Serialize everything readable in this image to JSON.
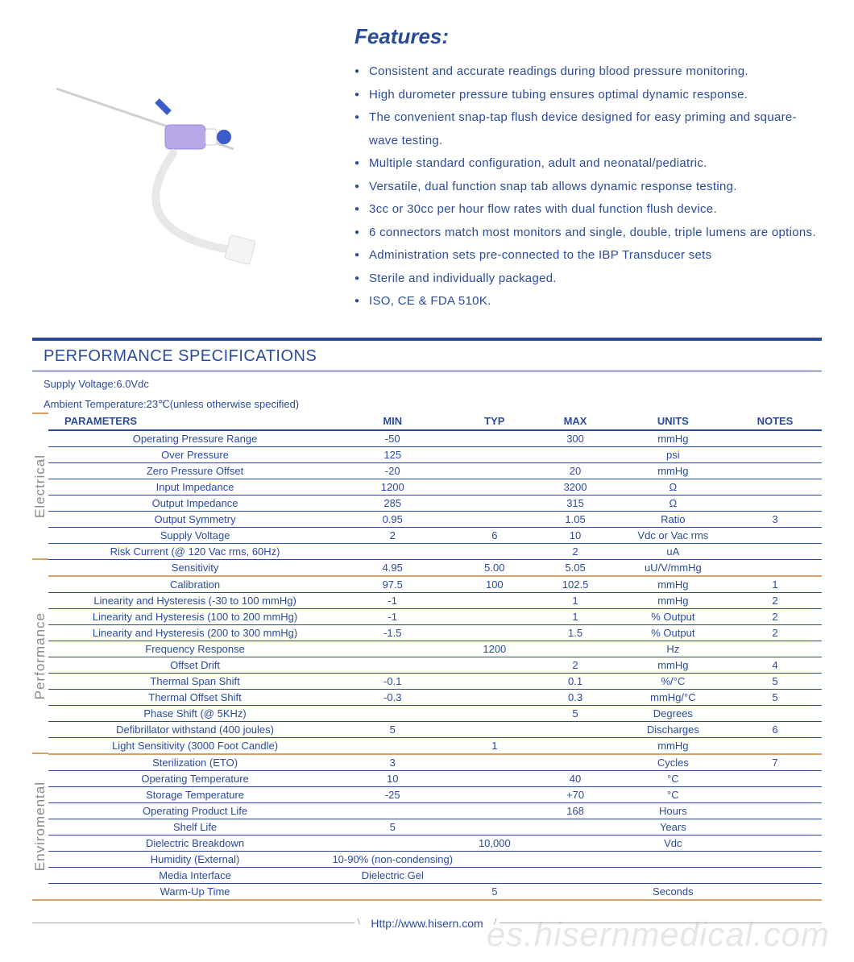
{
  "colors": {
    "brand": "#2a4b9b",
    "accent_border": "#d9a066",
    "text_muted": "#888888",
    "background": "#ffffff"
  },
  "features": {
    "heading": "Features:",
    "items": [
      "Consistent and accurate readings during blood pressure monitoring.",
      "High durometer pressure tubing ensures optimal dynamic response.",
      "The convenient snap-tap flush device designed for easy priming and square-wave testing.",
      "Multiple standard configuration, adult and neonatal/pediatric.",
      "Versatile, dual function snap tab allows dynamic response testing.",
      "3cc or 30cc per hour flow rates with dual function flush device.",
      "6 connectors match most monitors and single, double, triple lumens are options.",
      "Administration sets pre-connected to the IBP Transducer sets",
      "Sterile and individually packaged.",
      "ISO, CE & FDA 510K."
    ]
  },
  "spec": {
    "title": "PERFORMANCE SPECIFICATIONS",
    "supply_voltage_note": "Supply Voltage:6.0Vdc",
    "ambient_note": "Ambient Temperature:23℃(unless otherwise specified)",
    "headers": {
      "parameters": "PARAMETERS",
      "min": "MIN",
      "typ": "TYP",
      "max": "MAX",
      "units": "UNITS",
      "notes": "NOTES"
    },
    "sections": [
      {
        "label": "Electrical",
        "rows": [
          {
            "param": "Operating Pressure Range",
            "min": "-50",
            "typ": "",
            "max": "300",
            "units": "mmHg",
            "notes": ""
          },
          {
            "param": "Over  Pressure",
            "min": "125",
            "typ": "",
            "max": "",
            "units": "psi",
            "notes": ""
          },
          {
            "param": "Zero Pressure Offset",
            "min": "-20",
            "typ": "",
            "max": "20",
            "units": "mmHg",
            "notes": ""
          },
          {
            "param": "Input Impedance",
            "min": "1200",
            "typ": "",
            "max": "3200",
            "units": "Ω",
            "notes": ""
          },
          {
            "param": "Output Impedance",
            "min": "285",
            "typ": "",
            "max": "315",
            "units": "Ω",
            "notes": ""
          },
          {
            "param": "Output Symmetry",
            "min": "0.95",
            "typ": "",
            "max": "1.05",
            "units": "Ratio",
            "notes": "3"
          },
          {
            "param": "Supply Voltage",
            "min": "2",
            "typ": "6",
            "max": "10",
            "units": "Vdc or Vac rms",
            "notes": ""
          },
          {
            "param": "Risk Current (@ 120 Vac rms, 60Hz)",
            "min": "",
            "typ": "",
            "max": "2",
            "units": "uA",
            "notes": ""
          },
          {
            "param": "Sensitivity",
            "min": "4.95",
            "typ": "5.00",
            "max": "5.05",
            "units": "uU/V/mmHg",
            "notes": ""
          }
        ]
      },
      {
        "label": "Performance",
        "rows": [
          {
            "param": "Calibration",
            "min": "97.5",
            "typ": "100",
            "max": "102.5",
            "units": "mmHg",
            "notes": "1"
          },
          {
            "param": "Linearity and Hysteresis (-30 to 100 mmHg)",
            "min": "-1",
            "typ": "",
            "max": "1",
            "units": "mmHg",
            "notes": "2"
          },
          {
            "param": "Linearity and Hysteresis (100 to 200 mmHg)",
            "min": "-1",
            "typ": "",
            "max": "1",
            "units": "% Output",
            "notes": "2"
          },
          {
            "param": "Linearity and Hysteresis (200 to 300 mmHg)",
            "min": "-1.5",
            "typ": "",
            "max": "1.5",
            "units": "% Output",
            "notes": "2"
          },
          {
            "param": "Frequency Response",
            "min": "",
            "typ": "1200",
            "max": "",
            "units": "Hz",
            "notes": ""
          },
          {
            "param": "Offset Drift",
            "min": "",
            "typ": "",
            "max": "2",
            "units": "mmHg",
            "notes": "4"
          },
          {
            "param": "Thermal Span Shift",
            "min": "-0.1",
            "typ": "",
            "max": "0.1",
            "units": "%/°C",
            "notes": "5"
          },
          {
            "param": "Thermal Offset Shift",
            "min": "-0.3",
            "typ": "",
            "max": "0.3",
            "units": "mmHg/°C",
            "notes": "5"
          },
          {
            "param": "Phase Shift (@ 5KHz)",
            "min": "",
            "typ": "",
            "max": "5",
            "units": "Degrees",
            "notes": ""
          },
          {
            "param": "Defibrillator withstand (400 joules)",
            "min": "5",
            "typ": "",
            "max": "",
            "units": "Discharges",
            "notes": "6"
          },
          {
            "param": "Light Sensitivity (3000 Foot Candle)",
            "min": "",
            "typ": "1",
            "max": "",
            "units": "mmHg",
            "notes": ""
          }
        ]
      },
      {
        "label": "Enviromental",
        "rows": [
          {
            "param": "Sterilization (ETO)",
            "min": "3",
            "typ": "",
            "max": "",
            "units": "Cycles",
            "notes": "7"
          },
          {
            "param": "Operating Temperature",
            "min": "10",
            "typ": "",
            "max": "40",
            "units": "°C",
            "notes": ""
          },
          {
            "param": "Storage Temperature",
            "min": "-25",
            "typ": "",
            "max": "+70",
            "units": "°C",
            "notes": ""
          },
          {
            "param": "Operating Product Life",
            "min": "",
            "typ": "",
            "max": "168",
            "units": "Hours",
            "notes": ""
          },
          {
            "param": "Shelf Life",
            "min": "5",
            "typ": "",
            "max": "",
            "units": "Years",
            "notes": ""
          },
          {
            "param": "Dielectric Breakdown",
            "min": "",
            "typ": "10,000",
            "max": "",
            "units": "Vdc",
            "notes": ""
          },
          {
            "param": "Humidity (External)",
            "min": "10-90% (non-condensing)",
            "typ": "",
            "max": "",
            "units": "",
            "notes": ""
          },
          {
            "param": "Media Interface",
            "min": "Dielectric Gel",
            "typ": "",
            "max": "",
            "units": "",
            "notes": ""
          },
          {
            "param": "Warm-Up Time",
            "min": "",
            "typ": "5",
            "max": "",
            "units": "Seconds",
            "notes": ""
          }
        ]
      }
    ]
  },
  "footer": {
    "url": "Http://www.hisern.com"
  },
  "watermark": "es.hisernmedical.com"
}
